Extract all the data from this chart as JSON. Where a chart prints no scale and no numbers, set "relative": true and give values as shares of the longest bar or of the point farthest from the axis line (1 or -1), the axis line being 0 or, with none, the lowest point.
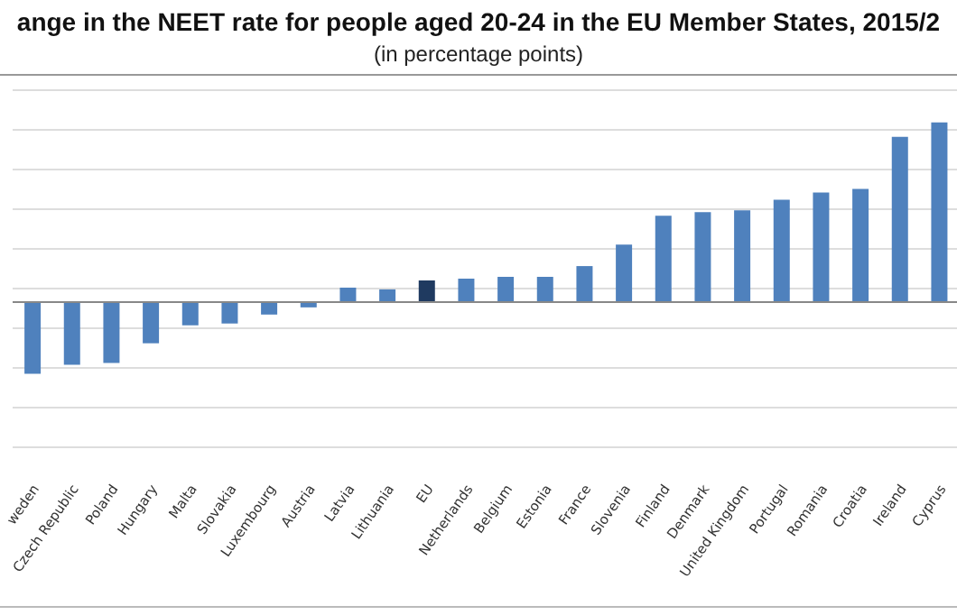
{
  "chart_data": {
    "type": "bar",
    "title": "ange in the NEET rate for people aged 20-24 in the EU Member States, 2015/2",
    "subtitle": "(in percentage points)",
    "relative": true,
    "grid": "y",
    "legend": false,
    "categories": [
      "weden",
      "Czech Republic",
      "Poland",
      "Hungary",
      "Malta",
      "Slovakia",
      "Luxembourg",
      "Austria",
      "Latvia",
      "Lithuania",
      "EU",
      "Netherlands",
      "Belgium",
      "Estonia",
      "France",
      "Slovenia",
      "Finland",
      "Denmark",
      "United Kingdom",
      "Portugal",
      "Romania",
      "Croatia",
      "Ireland",
      "Cyprus"
    ],
    "values": [
      -0.4,
      -0.35,
      -0.34,
      -0.23,
      -0.13,
      -0.12,
      -0.07,
      -0.03,
      0.08,
      0.07,
      0.12,
      0.13,
      0.14,
      0.14,
      0.2,
      0.32,
      0.48,
      0.5,
      0.51,
      0.57,
      0.61,
      0.63,
      0.92,
      1
    ],
    "colors": [
      "#4f81bd",
      "#4f81bd",
      "#4f81bd",
      "#4f81bd",
      "#4f81bd",
      "#4f81bd",
      "#4f81bd",
      "#4f81bd",
      "#4f81bd",
      "#4f81bd",
      "#1f3a60",
      "#4f81bd",
      "#4f81bd",
      "#4f81bd",
      "#4f81bd",
      "#4f81bd",
      "#4f81bd",
      "#4f81bd",
      "#4f81bd",
      "#4f81bd",
      "#4f81bd",
      "#4f81bd",
      "#4f81bd",
      "#4f81bd"
    ]
  }
}
